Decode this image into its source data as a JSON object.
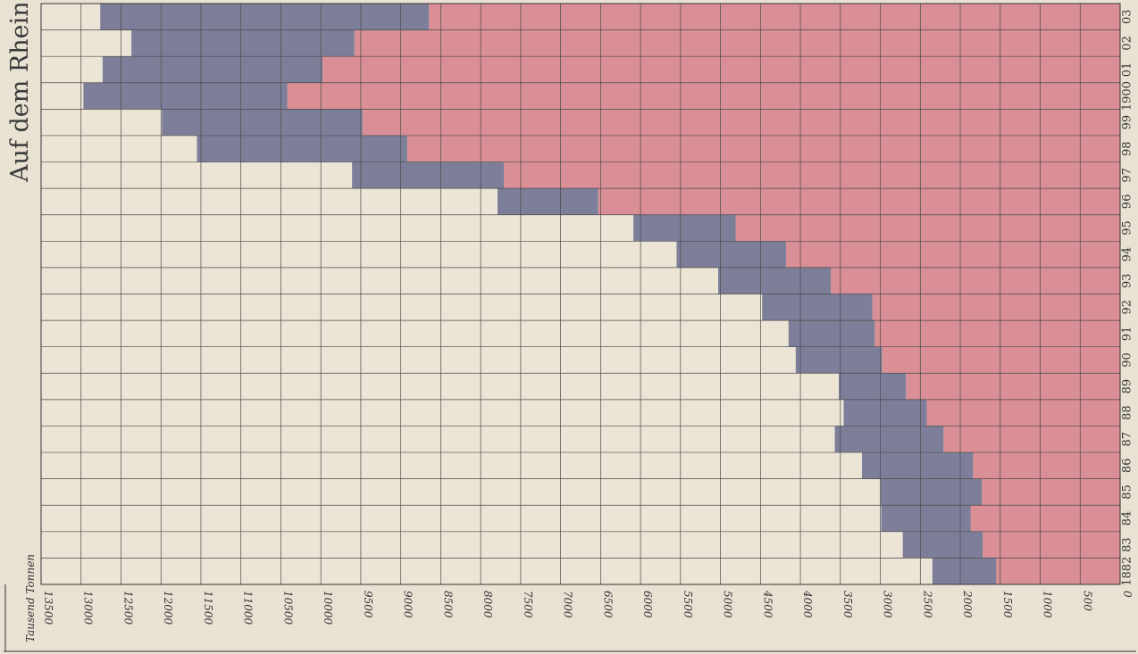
{
  "title": "Auf dem Rhein",
  "chart_data": {
    "type": "bar",
    "orientation": "horizontal",
    "stacked": true,
    "xlabel": "Tausend Tonnen",
    "xaxis_direction": "right-to-left",
    "xlim": [
      0,
      13500
    ],
    "xticks": [
      "13500",
      "13000",
      "12500",
      "12000",
      "11500",
      "11000",
      "10500",
      "10000",
      "9500",
      "9000",
      "8500",
      "8000",
      "7500",
      "7000",
      "6500",
      "6000",
      "5500",
      "5000",
      "4500",
      "4000",
      "3500",
      "3000",
      "2500",
      "2000",
      "1500",
      "1000",
      "500",
      "0"
    ],
    "categories": [
      "1882",
      "83",
      "84",
      "85",
      "86",
      "87",
      "88",
      "89",
      "90",
      "91",
      "92",
      "93",
      "94",
      "95",
      "96",
      "97",
      "98",
      "99",
      "1900",
      "01",
      "02",
      "03"
    ],
    "series": [
      {
        "color": "#d98f95",
        "values": [
          1550,
          1720,
          1870,
          1730,
          1840,
          2210,
          2420,
          2680,
          2980,
          3070,
          3100,
          3620,
          4180,
          4810,
          6530,
          7710,
          8920,
          9480,
          10420,
          9980,
          9580,
          8650
        ]
      },
      {
        "color": "#7d7f9a",
        "values": [
          800,
          1000,
          1120,
          1270,
          1390,
          1360,
          1040,
          840,
          1080,
          1080,
          1380,
          1410,
          1370,
          1280,
          1260,
          1900,
          2630,
          2510,
          2550,
          2750,
          2790,
          4110
        ]
      },
      {
        "color": "#ece5d5",
        "values": [
          580,
          240,
          190,
          220,
          180,
          240,
          140,
          330,
          360,
          510,
          590,
          830,
          790,
          460,
          2160,
          460,
          330,
          450,
          0,
          0,
          0,
          0
        ]
      }
    ],
    "grid": true
  }
}
